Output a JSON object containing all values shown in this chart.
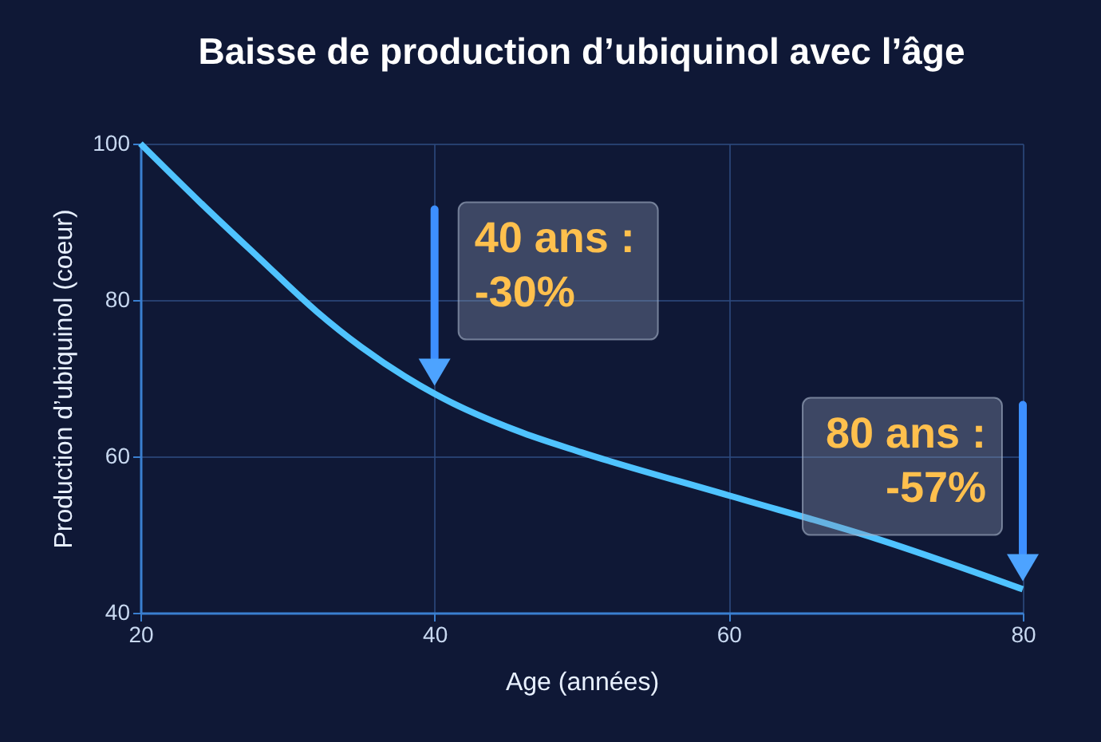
{
  "chart_data": {
    "type": "line",
    "title": "Baisse de production d’ubiquinol avec l’âge",
    "xlabel": "Age (années)",
    "ylabel": "Production d’ubiquinol (coeur)",
    "x": [
      20,
      24,
      28,
      32,
      35,
      40,
      46,
      50,
      60,
      70,
      80
    ],
    "series": [
      {
        "color": "#4fc3ff",
        "values": [
          100,
          92.6,
          85.5,
          78.5,
          74,
          68,
          63,
          60.5,
          55,
          49.5,
          43
        ]
      }
    ],
    "xlim": [
      20,
      80
    ],
    "xticks": [
      20,
      40,
      60,
      80
    ],
    "ylim": [
      40,
      100
    ],
    "yticks": [
      40,
      60,
      80,
      100
    ],
    "grid": true,
    "marker": "none",
    "line_style": "solid",
    "annotations": [
      {
        "text": "40 ans :\n-30%",
        "x": 40,
        "y": 68
      },
      {
        "text": "80 ans :\n-57%",
        "x": 80,
        "y": 43
      }
    ]
  }
}
